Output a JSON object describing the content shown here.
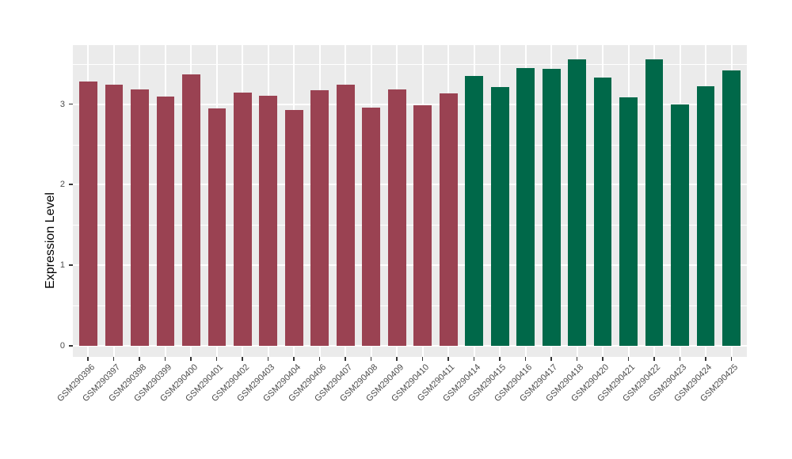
{
  "chart_data": {
    "type": "bar",
    "title": "",
    "xlabel": "",
    "ylabel": "Expression Level",
    "ylim": [
      0,
      3.73
    ],
    "yticks": [
      0,
      1,
      2,
      3
    ],
    "yticks_minor": [
      0.5,
      1.5,
      2.5,
      3.5
    ],
    "grid": "on",
    "legend_position": "none",
    "panel_background": "#EBEBEB",
    "grid_color": "#FFFFFF",
    "categories": [
      "GSM290396",
      "GSM290397",
      "GSM290398",
      "GSM290399",
      "GSM290400",
      "GSM290401",
      "GSM290402",
      "GSM290403",
      "GSM290404",
      "GSM290406",
      "GSM290407",
      "GSM290408",
      "GSM290409",
      "GSM290410",
      "GSM290411",
      "GSM290414",
      "GSM290415",
      "GSM290416",
      "GSM290417",
      "GSM290418",
      "GSM290420",
      "GSM290421",
      "GSM290422",
      "GSM290423",
      "GSM290424",
      "GSM290425"
    ],
    "values": [
      3.28,
      3.24,
      3.18,
      3.09,
      3.37,
      2.95,
      3.14,
      3.1,
      2.93,
      3.17,
      3.24,
      2.96,
      3.18,
      2.99,
      3.13,
      3.35,
      3.21,
      3.45,
      3.44,
      3.56,
      3.33,
      3.08,
      3.56,
      3.0,
      3.22,
      3.42
    ],
    "bar_colors": [
      "#9A4252",
      "#9A4252",
      "#9A4252",
      "#9A4252",
      "#9A4252",
      "#9A4252",
      "#9A4252",
      "#9A4252",
      "#9A4252",
      "#9A4252",
      "#9A4252",
      "#9A4252",
      "#9A4252",
      "#9A4252",
      "#9A4252",
      "#006849",
      "#006849",
      "#006849",
      "#006849",
      "#006849",
      "#006849",
      "#006849",
      "#006849",
      "#006849",
      "#006849",
      "#006849"
    ],
    "group_colors": {
      "left_group": "#9A4252",
      "right_group": "#006849"
    }
  }
}
